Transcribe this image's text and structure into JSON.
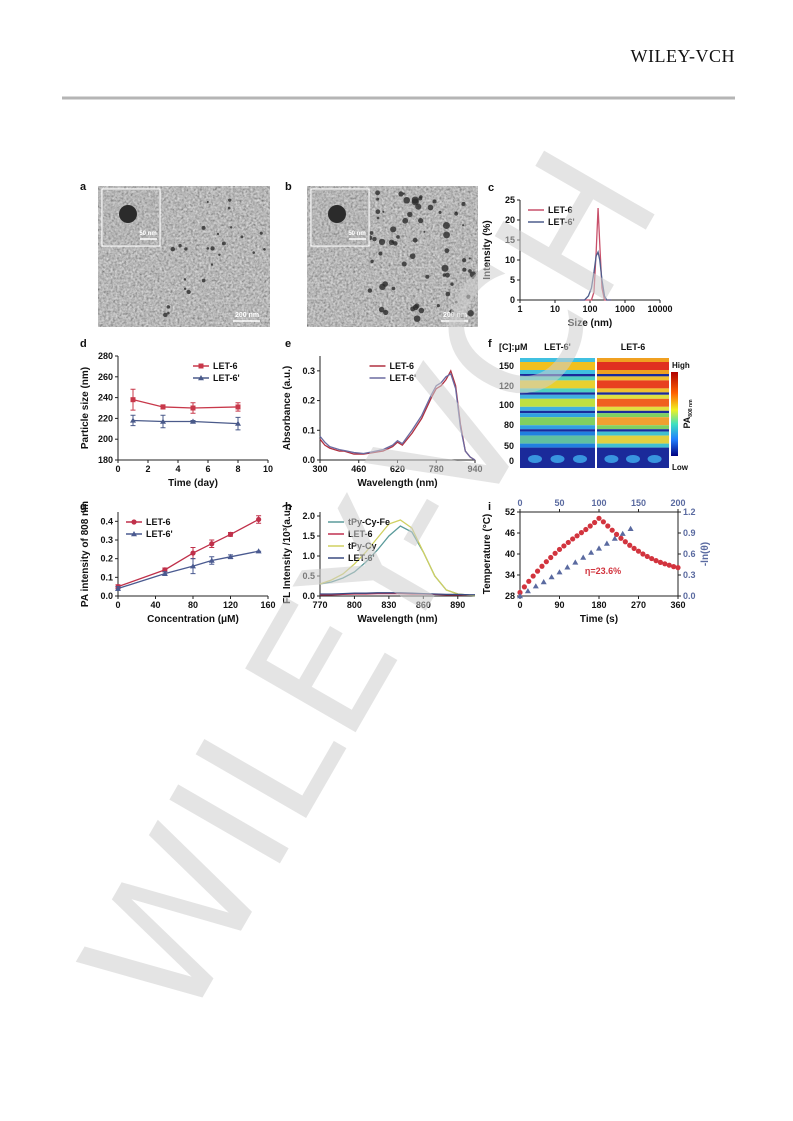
{
  "header": {
    "publisher": "WILEY-VCH"
  },
  "watermark": "WILEY-VCH",
  "images": [
    {
      "panel": "a",
      "inset_scale_bar": "50 nm",
      "scale_bar": "200 nm"
    },
    {
      "panel": "b",
      "inset_scale_bar": "50 nm",
      "scale_bar": "200 nm"
    },
    {
      "panel": "f",
      "corner_label": "[C]:μM",
      "columns": [
        "LET-6'",
        "LET-6"
      ],
      "rows": [
        150,
        120,
        100,
        80,
        50,
        0
      ],
      "colorbar_high": "High",
      "colorbar_low": "Low",
      "colorbar_label": "PA",
      "colorbar_subscript": "808 nm"
    }
  ],
  "chart_data": [
    {
      "panel": "c",
      "type": "line",
      "xlabel": "Size (nm)",
      "ylabel": "Intensity (%)",
      "xscale": "log",
      "x": [
        50,
        70,
        90,
        110,
        130,
        150,
        170,
        190,
        220,
        260,
        300,
        400
      ],
      "xlim": [
        1,
        10000
      ],
      "xticks": [
        1,
        10,
        100,
        1000,
        10000
      ],
      "ylim": [
        0,
        25
      ],
      "yticks": [
        0,
        5,
        10,
        15,
        20,
        25
      ],
      "legend": "upper left",
      "series": [
        {
          "name": "LET-6",
          "color": "#c8506a",
          "values": [
            0,
            0,
            0,
            0,
            2,
            12,
            23,
            14,
            3,
            0,
            0,
            0
          ]
        },
        {
          "name": "LET-6'",
          "color": "#4d5d8c",
          "values": [
            0,
            0,
            1,
            3,
            7,
            11,
            12,
            10,
            5,
            1,
            0,
            0
          ]
        }
      ]
    },
    {
      "panel": "d",
      "type": "line",
      "xlabel": "Time (day)",
      "ylabel": "Particle size (nm)",
      "x": [
        1,
        3,
        5,
        8
      ],
      "xlim": [
        0,
        10
      ],
      "xticks": [
        0,
        2,
        4,
        6,
        8,
        10
      ],
      "ylim": [
        180,
        280
      ],
      "yticks": [
        180,
        200,
        220,
        240,
        260,
        280
      ],
      "legend": "upper right",
      "series": [
        {
          "name": "LET-6",
          "color": "#c8384a",
          "marker": "square",
          "values": [
            238,
            231,
            230,
            231
          ],
          "errors": [
            10,
            2,
            5,
            4
          ]
        },
        {
          "name": "LET-6'",
          "color": "#4a5a8a",
          "marker": "triangle",
          "values": [
            218,
            217,
            217,
            215
          ],
          "errors": [
            5,
            6,
            1,
            6
          ]
        }
      ]
    },
    {
      "panel": "e",
      "type": "line",
      "xlabel": "Wavelength (nm)",
      "ylabel": "Absorbance (a.u.)",
      "x": [
        300,
        320,
        340,
        360,
        380,
        400,
        440,
        480,
        520,
        560,
        600,
        620,
        640,
        680,
        720,
        760,
        780,
        800,
        820,
        840,
        860,
        880,
        900,
        920,
        940
      ],
      "xlim": [
        300,
        940
      ],
      "xticks": [
        300,
        460,
        620,
        780,
        940
      ],
      "ylim": [
        0,
        0.35
      ],
      "yticks": [
        {
          "value": 0,
          "label": "0.0"
        },
        0.1,
        0.2,
        0.3
      ],
      "legend": "upper center",
      "series": [
        {
          "name": "LET-6",
          "color": "#b03040",
          "values": [
            0.07,
            0.05,
            0.04,
            0.035,
            0.03,
            0.03,
            0.02,
            0.02,
            0.025,
            0.03,
            0.045,
            0.06,
            0.05,
            0.09,
            0.14,
            0.21,
            0.24,
            0.25,
            0.27,
            0.3,
            0.25,
            0.12,
            0.03,
            0.01,
            0
          ]
        },
        {
          "name": "LET-6'",
          "color": "#6a6aa0",
          "values": [
            0.08,
            0.06,
            0.045,
            0.04,
            0.035,
            0.032,
            0.025,
            0.022,
            0.028,
            0.035,
            0.05,
            0.065,
            0.055,
            0.1,
            0.15,
            0.22,
            0.25,
            0.26,
            0.28,
            0.29,
            0.24,
            0.11,
            0.03,
            0.01,
            0
          ]
        }
      ]
    },
    {
      "panel": "g",
      "type": "line",
      "xlabel": "Concentration (μM)",
      "ylabel": "PA intensity of 808 nm",
      "x": [
        0,
        50,
        80,
        100,
        120,
        150
      ],
      "xlim": [
        0,
        160
      ],
      "xticks": [
        0,
        40,
        80,
        120,
        160
      ],
      "ylim": [
        0,
        0.45
      ],
      "yticks": [
        {
          "value": 0,
          "label": "0.0"
        },
        0.1,
        0.2,
        0.3,
        0.4
      ],
      "legend": "upper left",
      "series": [
        {
          "name": "LET-6",
          "color": "#c0304a",
          "marker": "circle",
          "values": [
            0.05,
            0.14,
            0.23,
            0.28,
            0.33,
            0.41
          ],
          "errors": [
            0.01,
            0.01,
            0.03,
            0.02,
            0.01,
            0.02
          ]
        },
        {
          "name": "LET-6'",
          "color": "#4a5a90",
          "marker": "triangle",
          "values": [
            0.04,
            0.12,
            0.16,
            0.19,
            0.21,
            0.24
          ],
          "errors": [
            0.01,
            0.01,
            0.04,
            0.02,
            0.01,
            0
          ]
        }
      ]
    },
    {
      "panel": "h",
      "type": "line",
      "xlabel": "Wavelength (nm)",
      "ylabel": "FL Intensity /10³(a.u.)",
      "x": [
        770,
        780,
        790,
        800,
        810,
        820,
        830,
        840,
        850,
        860,
        870,
        880,
        890,
        900,
        905
      ],
      "xlim": [
        770,
        905
      ],
      "xticks": [
        770,
        800,
        830,
        860,
        890
      ],
      "ylim": [
        0,
        2.1
      ],
      "yticks": [
        {
          "value": 0,
          "label": "0.0"
        },
        0.5,
        {
          "value": 1,
          "label": "1.0"
        },
        1.5,
        {
          "value": 2,
          "label": "2.0"
        }
      ],
      "legend": "upper left",
      "series": [
        {
          "name": "tPy-Cy-Fe",
          "color": "#5a9a9a",
          "values": [
            0.3,
            0.35,
            0.45,
            0.6,
            0.85,
            1.15,
            1.5,
            1.75,
            1.6,
            1.1,
            0.5,
            0.15,
            0.05,
            0.02,
            0.01
          ]
        },
        {
          "name": "LET-6",
          "color": "#c03050",
          "values": [
            0.03,
            0.03,
            0.04,
            0.05,
            0.05,
            0.06,
            0.06,
            0.06,
            0.05,
            0.05,
            0.04,
            0.03,
            0.03,
            0.02,
            0.02
          ]
        },
        {
          "name": "tPy-Cy",
          "color": "#d0d060",
          "values": [
            0.3,
            0.4,
            0.55,
            0.8,
            1.1,
            1.45,
            1.8,
            1.9,
            1.7,
            1.1,
            0.5,
            0.15,
            0.05,
            0.02,
            0.01
          ]
        },
        {
          "name": "LET-6'",
          "color": "#3a4a80",
          "values": [
            0.05,
            0.05,
            0.06,
            0.07,
            0.07,
            0.08,
            0.08,
            0.08,
            0.07,
            0.06,
            0.05,
            0.04,
            0.04,
            0.03,
            0.03
          ]
        }
      ]
    },
    {
      "panel": "i",
      "type": "scatter",
      "xlabel": "Time (s)",
      "ylabel": "Temperature (°C)",
      "y2label": "-ln(θ)",
      "annotation": "η=23.6%",
      "x": [
        0,
        10,
        20,
        30,
        40,
        50,
        60,
        70,
        80,
        90,
        100,
        110,
        120,
        130,
        140,
        150,
        160,
        170,
        180,
        190,
        200,
        210,
        220,
        230,
        240,
        250,
        260,
        270,
        280,
        290,
        300,
        310,
        320,
        330,
        340,
        350,
        360
      ],
      "xlim": [
        0,
        360
      ],
      "xticks": [
        0,
        90,
        180,
        270,
        360
      ],
      "x2lim": [
        0,
        200
      ],
      "x2ticks": [
        0,
        50,
        100,
        150,
        200
      ],
      "ylim": [
        28,
        52
      ],
      "yticks": [
        28,
        34,
        40,
        46,
        52
      ],
      "y2lim": [
        0,
        1.2
      ],
      "y2ticks": [
        {
          "value": 0,
          "label": "0.0"
        },
        0.3,
        0.6,
        0.9,
        1.2
      ],
      "series": [
        {
          "color": "#d2343e",
          "marker": "circle",
          "values": [
            29,
            30.6,
            32.2,
            33.7,
            35.1,
            36.5,
            37.8,
            39,
            40.2,
            41.3,
            42.3,
            43.3,
            44.3,
            45.2,
            46.1,
            47,
            48,
            49,
            50.2,
            49.2,
            48,
            46.8,
            45.6,
            44.5,
            43.5,
            42.5,
            41.6,
            40.8,
            40,
            39.3,
            38.7,
            38.1,
            37.6,
            37.2,
            36.8,
            36.4,
            36.1
          ]
        },
        {
          "color": "#5a6aa0",
          "marker": "triangle",
          "axis": "y2",
          "xaxis": "x2",
          "x": [
            0,
            10,
            20,
            30,
            40,
            50,
            60,
            70,
            80,
            90,
            100,
            110,
            120,
            130,
            140
          ],
          "values": [
            0,
            0.07,
            0.14,
            0.2,
            0.27,
            0.34,
            0.41,
            0.48,
            0.55,
            0.62,
            0.68,
            0.75,
            0.82,
            0.89,
            0.96
          ]
        }
      ]
    }
  ]
}
